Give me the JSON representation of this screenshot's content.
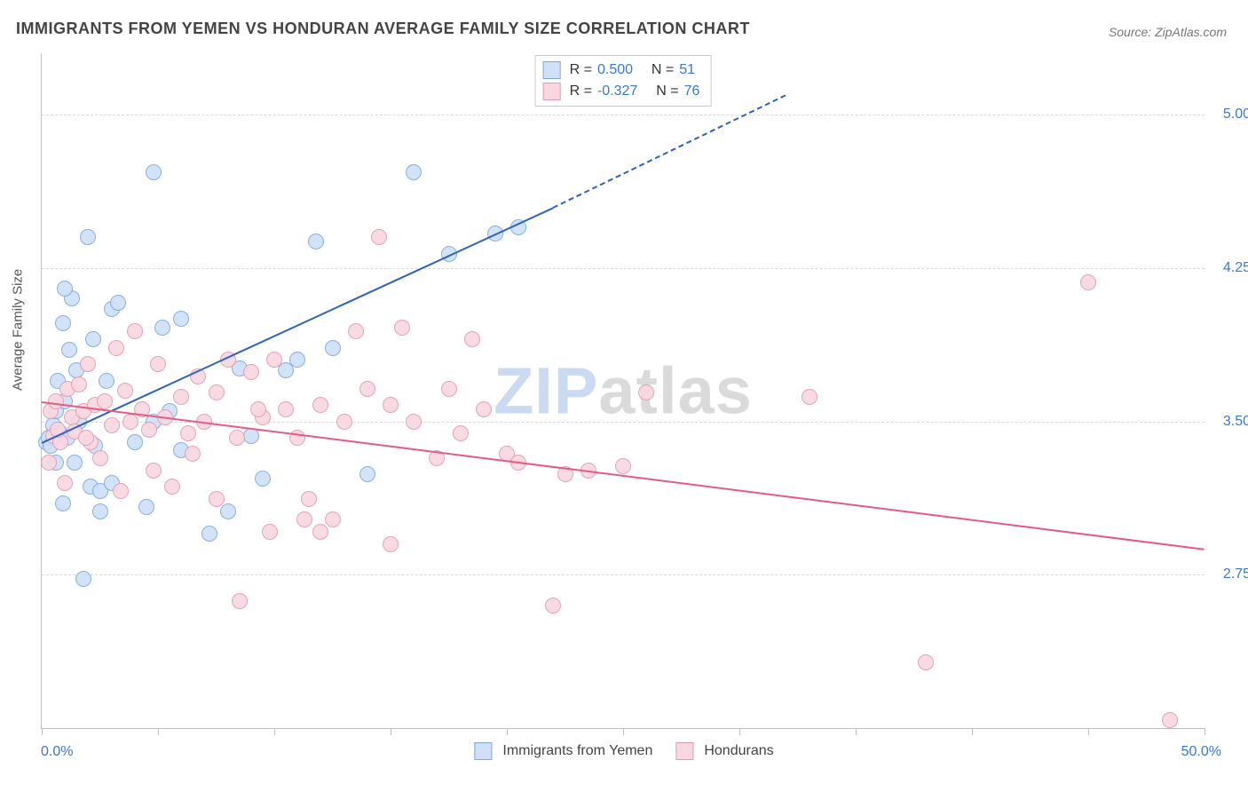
{
  "title": "IMMIGRANTS FROM YEMEN VS HONDURAN AVERAGE FAMILY SIZE CORRELATION CHART",
  "source_label": "Source: ZipAtlas.com",
  "ylabel": "Average Family Size",
  "watermark": {
    "pre": "ZIP",
    "post": "atlas"
  },
  "chart": {
    "type": "scatter",
    "xlim": [
      0,
      50
    ],
    "ylim": [
      2.0,
      5.3
    ],
    "x_unit": "%",
    "x_min_label": "0.0%",
    "x_max_label": "50.0%",
    "y_ticks": [
      2.75,
      3.5,
      4.25,
      5.0
    ],
    "y_tick_labels": [
      "2.75",
      "3.50",
      "4.25",
      "5.00"
    ],
    "x_tick_step_pct": 5,
    "grid_color": "#d9d9d9",
    "axis_color": "#bfbfbf",
    "background_color": "#ffffff",
    "series": [
      {
        "id": "yemen",
        "label": "Immigrants from Yemen",
        "color_fill": "#cfe0f7",
        "color_stroke": "#7ba7e6",
        "trend_color": "#2b63c0",
        "R": "0.500",
        "N": "51",
        "trend": {
          "x1": 0,
          "y1": 3.4,
          "x2": 22,
          "y2": 4.55,
          "dash_from_x": 22,
          "x3": 32,
          "y3": 5.1
        },
        "points": [
          [
            0.2,
            3.4
          ],
          [
            0.3,
            3.42
          ],
          [
            0.4,
            3.38
          ],
          [
            0.5,
            3.48
          ],
          [
            0.6,
            3.3
          ],
          [
            0.6,
            3.55
          ],
          [
            0.7,
            3.7
          ],
          [
            0.8,
            3.44
          ],
          [
            0.9,
            3.98
          ],
          [
            1.0,
            3.6
          ],
          [
            1.1,
            3.42
          ],
          [
            1.2,
            3.85
          ],
          [
            1.3,
            4.1
          ],
          [
            1.4,
            3.3
          ],
          [
            1.5,
            3.75
          ],
          [
            1.6,
            3.5
          ],
          [
            1.8,
            2.73
          ],
          [
            2.0,
            4.4
          ],
          [
            2.1,
            3.18
          ],
          [
            2.2,
            3.9
          ],
          [
            2.3,
            3.38
          ],
          [
            2.5,
            3.06
          ],
          [
            2.5,
            3.16
          ],
          [
            2.8,
            3.7
          ],
          [
            3.0,
            3.2
          ],
          [
            3.0,
            4.05
          ],
          [
            3.3,
            4.08
          ],
          [
            4.0,
            3.4
          ],
          [
            4.5,
            3.08
          ],
          [
            4.8,
            3.5
          ],
          [
            4.8,
            4.72
          ],
          [
            5.2,
            3.96
          ],
          [
            5.5,
            3.55
          ],
          [
            6.0,
            3.36
          ],
          [
            6.0,
            4.0
          ],
          [
            7.2,
            2.95
          ],
          [
            8.0,
            3.06
          ],
          [
            8.5,
            3.76
          ],
          [
            9.0,
            3.43
          ],
          [
            9.5,
            3.22
          ],
          [
            10.5,
            3.75
          ],
          [
            11.0,
            3.8
          ],
          [
            11.8,
            4.38
          ],
          [
            12.5,
            3.86
          ],
          [
            14.0,
            3.24
          ],
          [
            16.0,
            4.72
          ],
          [
            17.5,
            4.32
          ],
          [
            19.5,
            4.42
          ],
          [
            20.5,
            4.45
          ],
          [
            0.9,
            3.1
          ],
          [
            1.0,
            4.15
          ]
        ]
      },
      {
        "id": "honduran",
        "label": "Hondurans",
        "color_fill": "#f8d7e0",
        "color_stroke": "#e39ab0",
        "trend_color": "#e85a85",
        "R": "-0.327",
        "N": "76",
        "trend": {
          "x1": 0,
          "y1": 3.6,
          "x2": 50,
          "y2": 2.88
        },
        "points": [
          [
            0.3,
            3.3
          ],
          [
            0.4,
            3.55
          ],
          [
            0.5,
            3.43
          ],
          [
            0.6,
            3.6
          ],
          [
            0.8,
            3.4
          ],
          [
            1.0,
            3.2
          ],
          [
            1.1,
            3.66
          ],
          [
            1.3,
            3.52
          ],
          [
            1.4,
            3.45
          ],
          [
            1.6,
            3.68
          ],
          [
            1.8,
            3.55
          ],
          [
            2.0,
            3.78
          ],
          [
            2.1,
            3.4
          ],
          [
            2.3,
            3.58
          ],
          [
            2.5,
            3.32
          ],
          [
            2.7,
            3.6
          ],
          [
            3.0,
            3.48
          ],
          [
            3.2,
            3.86
          ],
          [
            3.4,
            3.16
          ],
          [
            3.6,
            3.65
          ],
          [
            3.8,
            3.5
          ],
          [
            4.0,
            3.94
          ],
          [
            4.3,
            3.56
          ],
          [
            4.6,
            3.46
          ],
          [
            5.0,
            3.78
          ],
          [
            5.3,
            3.52
          ],
          [
            5.6,
            3.18
          ],
          [
            6.0,
            3.62
          ],
          [
            6.3,
            3.44
          ],
          [
            6.7,
            3.72
          ],
          [
            7.0,
            3.5
          ],
          [
            7.5,
            3.64
          ],
          [
            7.5,
            3.12
          ],
          [
            8.0,
            3.8
          ],
          [
            8.4,
            3.42
          ],
          [
            8.5,
            2.62
          ],
          [
            9.0,
            3.74
          ],
          [
            9.5,
            3.52
          ],
          [
            9.8,
            2.96
          ],
          [
            10.0,
            3.8
          ],
          [
            10.5,
            3.56
          ],
          [
            11.0,
            3.42
          ],
          [
            11.3,
            3.02
          ],
          [
            11.5,
            3.12
          ],
          [
            12.0,
            3.58
          ],
          [
            12.5,
            3.02
          ],
          [
            12.0,
            2.96
          ],
          [
            13.0,
            3.5
          ],
          [
            13.5,
            3.94
          ],
          [
            14.0,
            3.66
          ],
          [
            14.5,
            4.4
          ],
          [
            15.0,
            3.58
          ],
          [
            15.0,
            2.9
          ],
          [
            16.0,
            3.5
          ],
          [
            15.5,
            3.96
          ],
          [
            17.0,
            3.32
          ],
          [
            17.5,
            3.66
          ],
          [
            18.0,
            3.44
          ],
          [
            18.5,
            3.9
          ],
          [
            19.0,
            3.56
          ],
          [
            20.0,
            3.34
          ],
          [
            20.5,
            3.3
          ],
          [
            22.0,
            2.6
          ],
          [
            22.5,
            3.24
          ],
          [
            23.5,
            3.26
          ],
          [
            25.0,
            3.28
          ],
          [
            26.0,
            3.64
          ],
          [
            33.0,
            3.62
          ],
          [
            38.0,
            2.32
          ],
          [
            45.0,
            4.18
          ],
          [
            48.5,
            2.04
          ],
          [
            0.7,
            3.46
          ],
          [
            1.9,
            3.42
          ],
          [
            4.8,
            3.26
          ],
          [
            6.5,
            3.34
          ],
          [
            9.3,
            3.56
          ]
        ]
      }
    ]
  },
  "stats_box": {
    "row_prefix_R": "R =",
    "row_prefix_N": "N ="
  }
}
